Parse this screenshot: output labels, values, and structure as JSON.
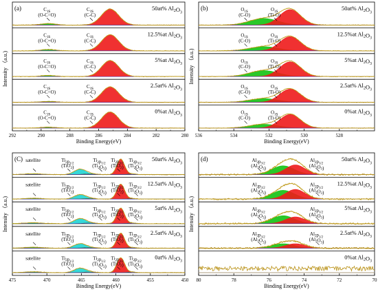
{
  "figure": {
    "ylabel": "Intensity （a.u.)",
    "xlabel": "Binding Energy(eV)"
  },
  "colors": {
    "green": "#12c212",
    "red": "#ee1b1b",
    "cyan": "#1fd4d4",
    "trace": "#b88f12",
    "envelope": "#c4a21a",
    "baseline": "#3333cc"
  },
  "chart_data": [
    {
      "id": "a",
      "type": "area",
      "title": "(a)",
      "xlabel": "Binding Energy(eV)",
      "ylabel": "Intensity （a.u.)",
      "xlim": [
        292,
        280
      ],
      "xticks": [
        292,
        290,
        288,
        286,
        284,
        282,
        280
      ],
      "samples": [
        "50at% Al2O3",
        "12.5%at Al2O3",
        "5%at Al2O3",
        "2.5at% Al2O3",
        "0%at Al2O3"
      ],
      "series": [
        {
          "name": "C1s (O-C=O)",
          "position_eV": 289.5,
          "fwhm_eV": 1.2,
          "heights": [
            0.08,
            0.07,
            0.06,
            0.05,
            0.05
          ]
        },
        {
          "name": "C1s (C-C)",
          "position_eV": 285.2,
          "fwhm_eV": 1.4,
          "heights": [
            0.85,
            0.85,
            0.85,
            0.82,
            0.85
          ]
        }
      ],
      "labels": [
        {
          "text": "C1s",
          "sub": "(O-C=O)",
          "at_eV": 289.6
        },
        {
          "text": "C1s",
          "sub": "(C-C)",
          "at_eV": 286.6
        }
      ]
    },
    {
      "id": "b",
      "type": "area",
      "title": "(b)",
      "xlabel": "Binding Energy(eV)",
      "ylabel": "Intensity （a.u.)",
      "xlim": [
        536,
        526
      ],
      "xticks": [
        536,
        534,
        532,
        530,
        528
      ],
      "samples": [
        "50at% Al2O3",
        "12.5%at Al2O3",
        "5%at Al2O3",
        "2.5at% Al2O3",
        "0%at Al2O3"
      ],
      "series": [
        {
          "name": "O1s (C-O)",
          "position_eV": 532.3,
          "fwhm_eV": 1.9,
          "heights": [
            0.35,
            0.22,
            0.32,
            0.2,
            0.2
          ]
        },
        {
          "name": "O1s (Ti-O)",
          "position_eV": 530.8,
          "fwhm_eV": 1.4,
          "heights": [
            0.82,
            0.75,
            0.78,
            0.7,
            0.72
          ]
        }
      ],
      "labels": [
        {
          "text": "O1s",
          "sub": "(C-O)",
          "at_eV": 533.4
        },
        {
          "text": "O1s",
          "sub": "(Ti-O)",
          "at_eV": 531.7
        }
      ]
    },
    {
      "id": "c",
      "type": "area",
      "title": "(C)",
      "xlabel": "Binding Energy(eV)",
      "ylabel": "Intensity （a.u.)",
      "xlim": [
        475,
        450
      ],
      "xticks": [
        475,
        470,
        465,
        460,
        455,
        450
      ],
      "samples": [
        "50at% Al2O3",
        "12.5at% Al2O3",
        "5at% Al2O3",
        "2.5at% Al2O3",
        "0at% Al2O3"
      ],
      "series": [
        {
          "name": "satellite",
          "position_eV": 472.0,
          "fwhm_eV": 3.0,
          "heights": [
            0.05,
            0.05,
            0.05,
            0.05,
            0.05
          ]
        },
        {
          "name": "Ti2p1/2 (TiO2)",
          "position_eV": 465.2,
          "fwhm_eV": 2.0,
          "heights": [
            0.3,
            0.25,
            0.28,
            0.25,
            0.25
          ]
        },
        {
          "name": "Ti2p1/2 (Ti2O3)",
          "position_eV": 463.8,
          "fwhm_eV": 2.0,
          "heights": [
            0.05,
            0.04,
            0.04,
            0.04,
            0.04
          ]
        },
        {
          "name": "Ti2p3/2 (TiO2)",
          "position_eV": 459.3,
          "fwhm_eV": 1.3,
          "heights": [
            0.88,
            0.85,
            0.88,
            0.85,
            0.85
          ]
        },
        {
          "name": "Ti2p3/2 (Ti2O3)",
          "position_eV": 457.7,
          "fwhm_eV": 1.3,
          "heights": [
            0.05,
            0.04,
            0.04,
            0.04,
            0.04
          ]
        }
      ],
      "labels": [
        {
          "text": "satellite",
          "sub": "",
          "at_eV": 472.0
        },
        {
          "text": "Ti2p1/2",
          "sub": "(TiO2)",
          "at_eV": 467.0
        },
        {
          "text": "Ti2p1/2",
          "sub": "(Ti2O3)",
          "at_eV": 462.4
        },
        {
          "text": "Ti2p3/2",
          "sub": "(TiO2)",
          "at_eV": 459.8
        },
        {
          "text": "Ti2p3/2",
          "sub": "(Ti2O3)",
          "at_eV": 457.2
        }
      ]
    },
    {
      "id": "d",
      "type": "area",
      "title": "(d)",
      "xlabel": "Binding Energy(eV)",
      "ylabel": "Intensity （a.u.)",
      "xlim": [
        80,
        70
      ],
      "xticks": [
        80,
        78,
        76,
        74,
        72,
        70
      ],
      "samples": [
        "50at% Al2O3",
        "12.5%at Al2O3",
        "5%at Al2O3",
        "2.5at% Al2O3",
        "0%at Al2O3"
      ],
      "series": [
        {
          "name": "Al2p3/2 (Al2O3)",
          "position_eV": 75.2,
          "fwhm_eV": 1.5,
          "heights": [
            0.5,
            0.5,
            0.45,
            0.25,
            0
          ]
        },
        {
          "name": "Al2p1/2 (Al2O3)",
          "position_eV": 74.5,
          "fwhm_eV": 1.3,
          "heights": [
            0.55,
            0.55,
            0.38,
            0.25,
            0
          ]
        }
      ],
      "labels": [
        {
          "text": "Al2p3/2",
          "sub": "(Al2O3)",
          "at_eV": 76.6
        },
        {
          "text": "Al2p1/2",
          "sub": "(Al2O3)",
          "at_eV": 73.3
        }
      ]
    }
  ]
}
